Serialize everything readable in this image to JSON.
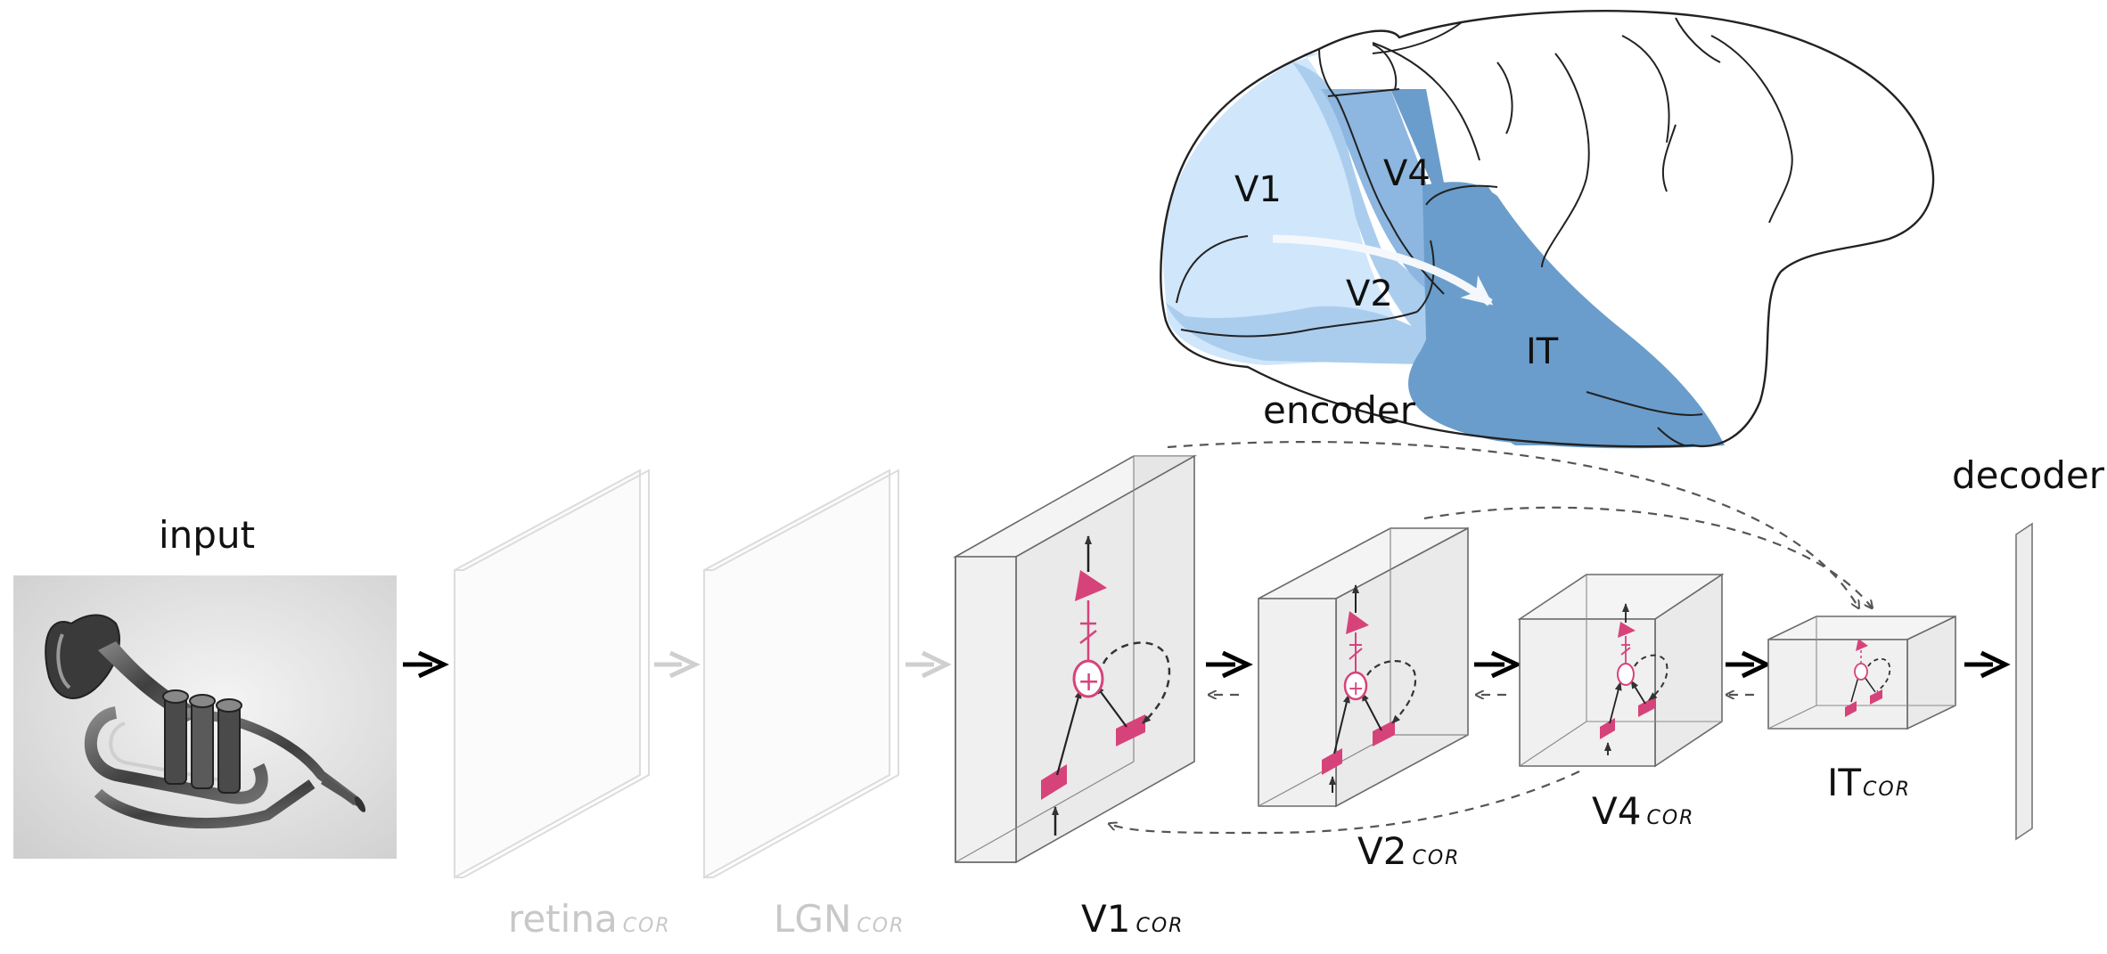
{
  "labels": {
    "input": "input",
    "encoder": "encoder",
    "decoder": "decoder"
  },
  "brain": {
    "regions": {
      "v1": "V1",
      "v2": "V2",
      "v4": "V4",
      "it": "IT"
    }
  },
  "stages": [
    {
      "id": "retina",
      "main": "retina",
      "sub": "COR",
      "status": "inactive"
    },
    {
      "id": "lgn",
      "main": "LGN",
      "sub": "COR",
      "status": "inactive"
    },
    {
      "id": "v1",
      "main": "V1",
      "sub": "COR",
      "status": "active"
    },
    {
      "id": "v2",
      "main": "V2",
      "sub": "COR",
      "status": "active"
    },
    {
      "id": "v4",
      "main": "V4",
      "sub": "COR",
      "status": "active"
    },
    {
      "id": "it",
      "main": "IT",
      "sub": "COR",
      "status": "active"
    }
  ],
  "colors": {
    "neuron": "#d6437a",
    "block_face": "#ececec",
    "block_edge": "#6a6a6a",
    "inactive": "#d2d2d2",
    "region_v1": "#cfe6fb",
    "region_v2": "#aacdee",
    "region_v4": "#8db6e0",
    "region_it": "#6a9dcb"
  },
  "icons": {
    "input_image": "trumpet-photo"
  }
}
